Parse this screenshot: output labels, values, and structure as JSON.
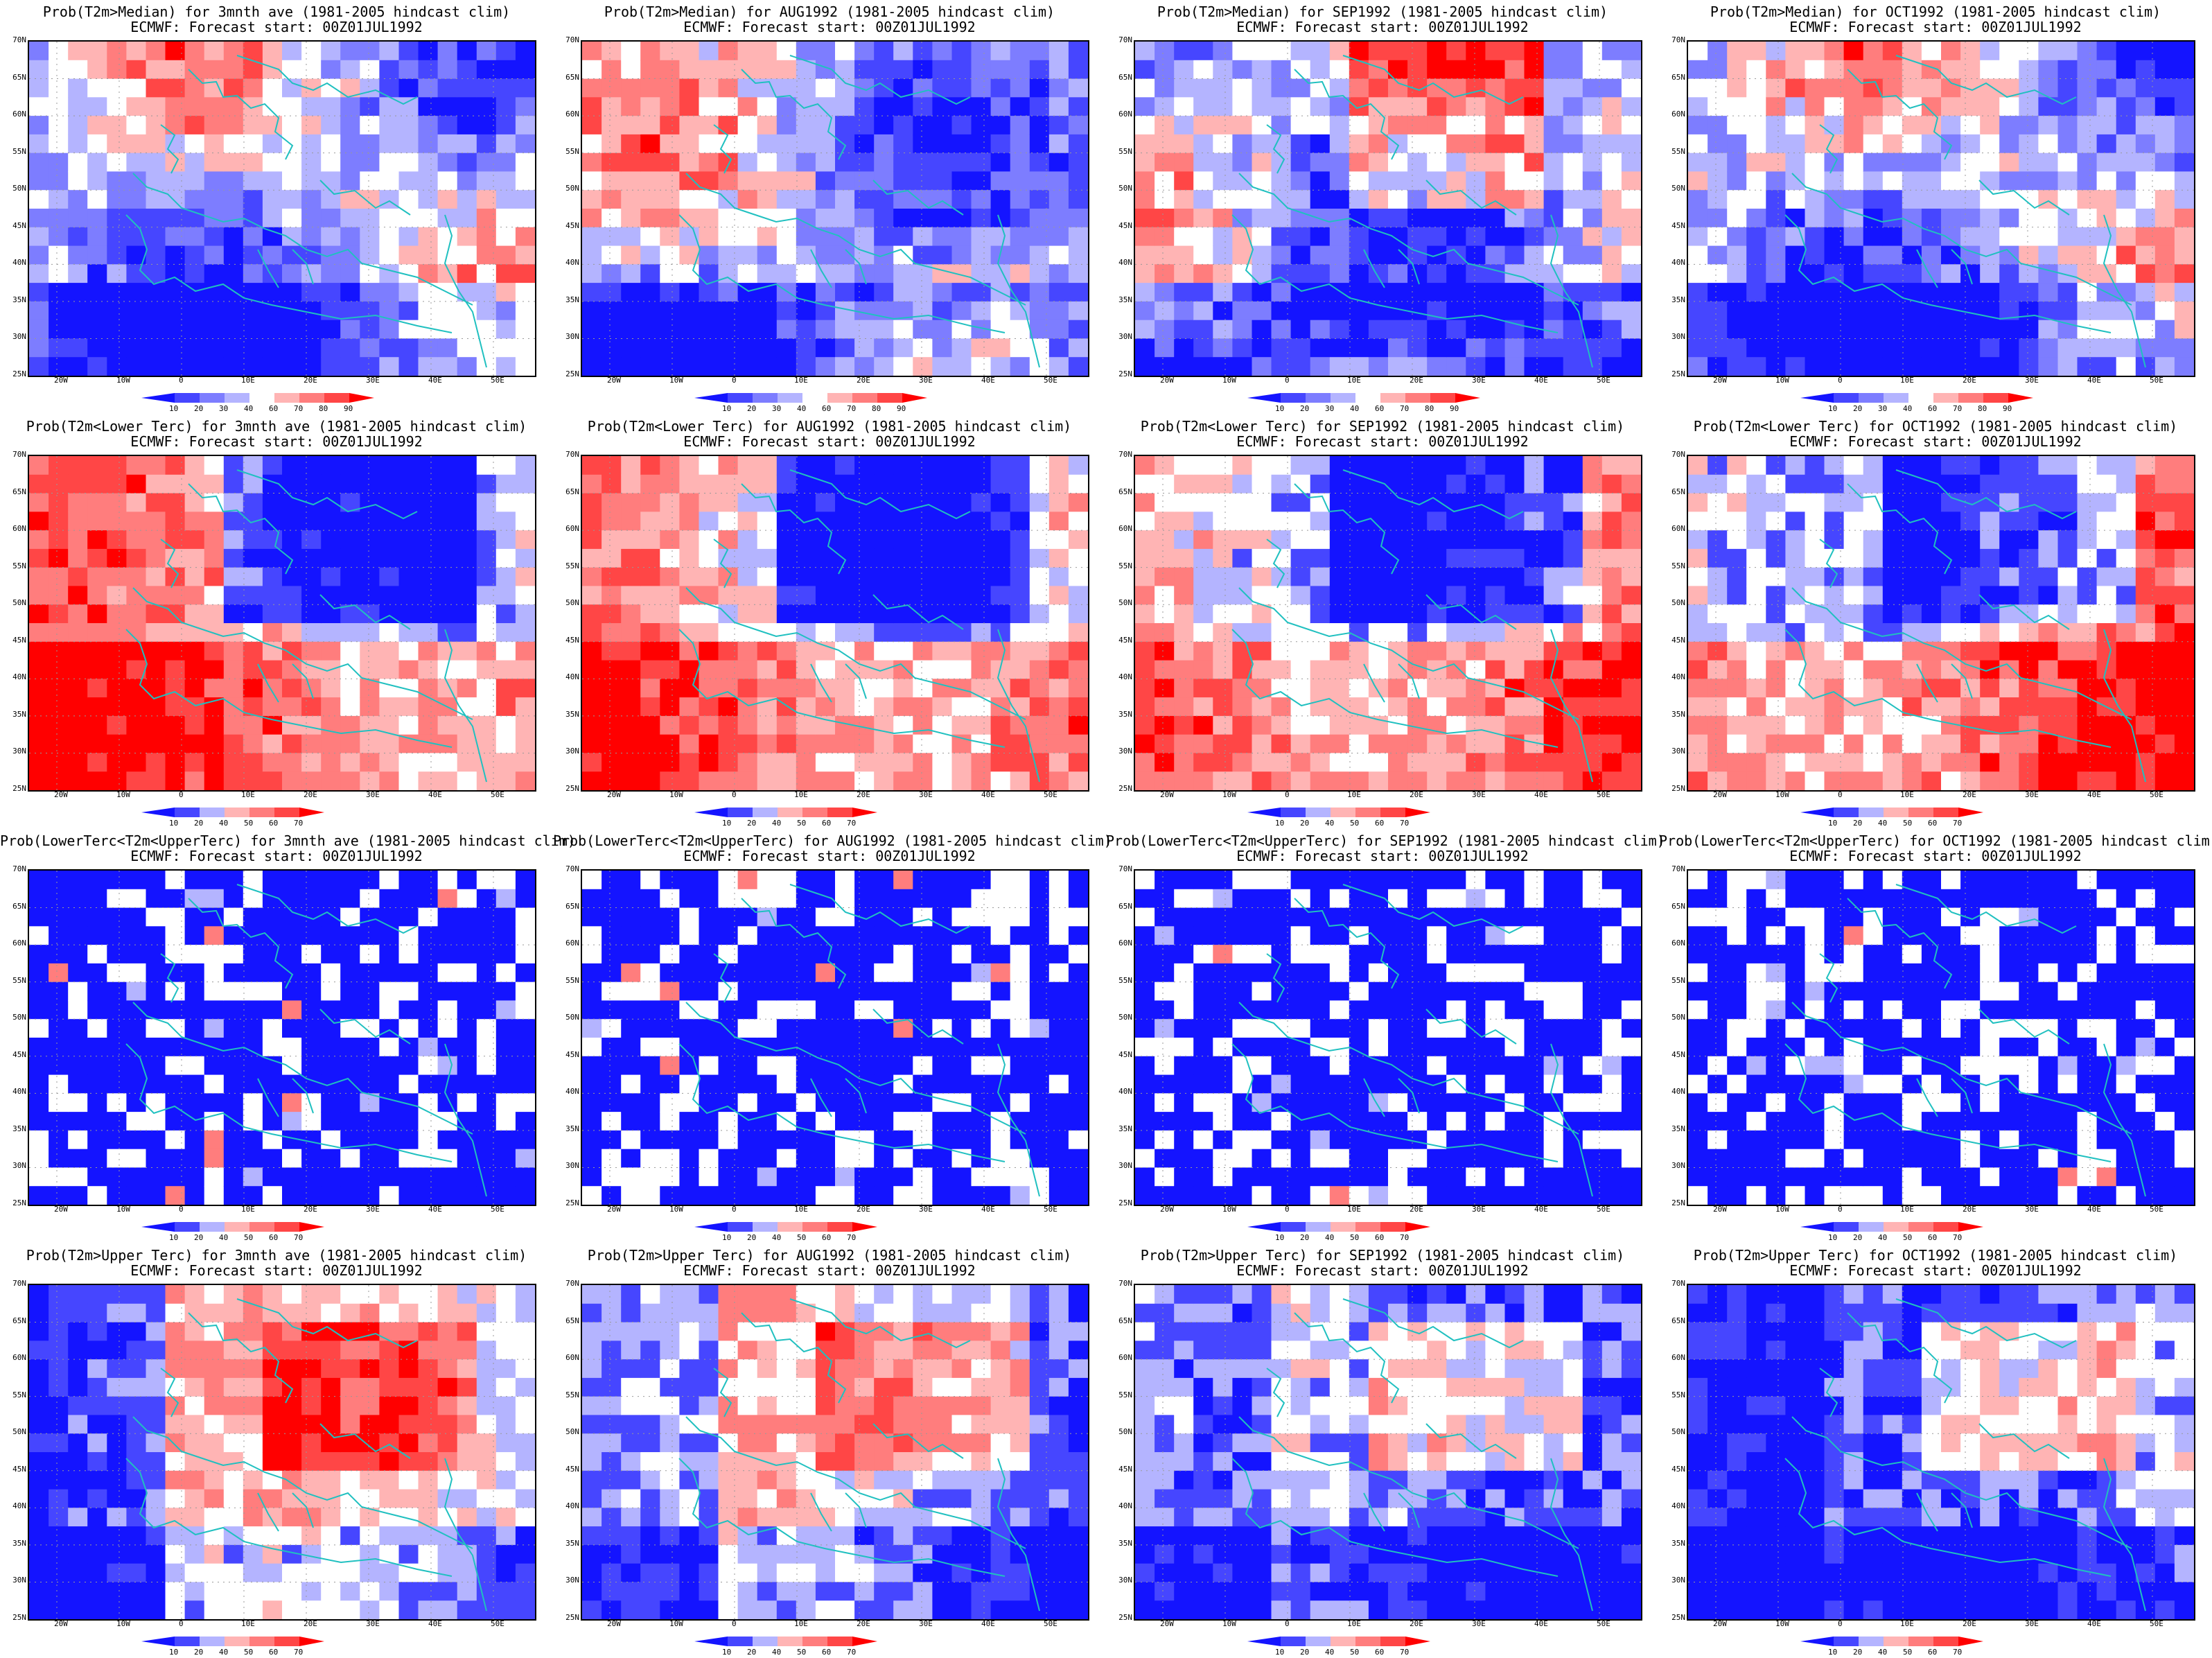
{
  "product": "ECMWF: Forecast start: 00Z01JUL1992",
  "rows": [
    {
      "variable": "Prob(T2m>Median)",
      "levels": [
        "10",
        "20",
        "30",
        "40",
        "60",
        "70",
        "80",
        "90"
      ],
      "pattern": "median"
    },
    {
      "variable": "Prob(T2m<Lower Terc)",
      "levels": [
        "10",
        "20",
        "40",
        "50",
        "60",
        "70"
      ],
      "pattern": "lower"
    },
    {
      "variable": "Prob(LowerTerc<T2m<UpperTerc)",
      "levels": [
        "10",
        "20",
        "40",
        "50",
        "60",
        "70"
      ],
      "pattern": "middle"
    },
    {
      "variable": "Prob(T2m>Upper Terc)",
      "levels": [
        "10",
        "20",
        "40",
        "50",
        "60",
        "70"
      ],
      "pattern": "upper"
    }
  ],
  "columns": [
    "for 3mnth ave (1981-2005 hindcast clim)",
    "for AUG1992 (1981-2005 hindcast clim)",
    "for SEP1992 (1981-2005 hindcast clim)",
    "for OCT1992 (1981-2005 hindcast clim)"
  ],
  "lat_labels": [
    "70N",
    "65N",
    "60N",
    "55N",
    "50N",
    "45N",
    "40N",
    "35N",
    "30N",
    "25N"
  ],
  "lon_labels": [
    "20W",
    "10W",
    "0",
    "10E",
    "20E",
    "30E",
    "40E",
    "50E"
  ],
  "colors": {
    "strong_blue": "#1414ff",
    "blue": "#4646ff",
    "mid_blue": "#7d7dff",
    "light_blue": "#b4b4ff",
    "light_red": "#ffb4b4",
    "mid_red": "#ff7d7d",
    "red": "#ff4646",
    "strong_red": "#ff0000",
    "coast": "#20c0c0"
  }
}
